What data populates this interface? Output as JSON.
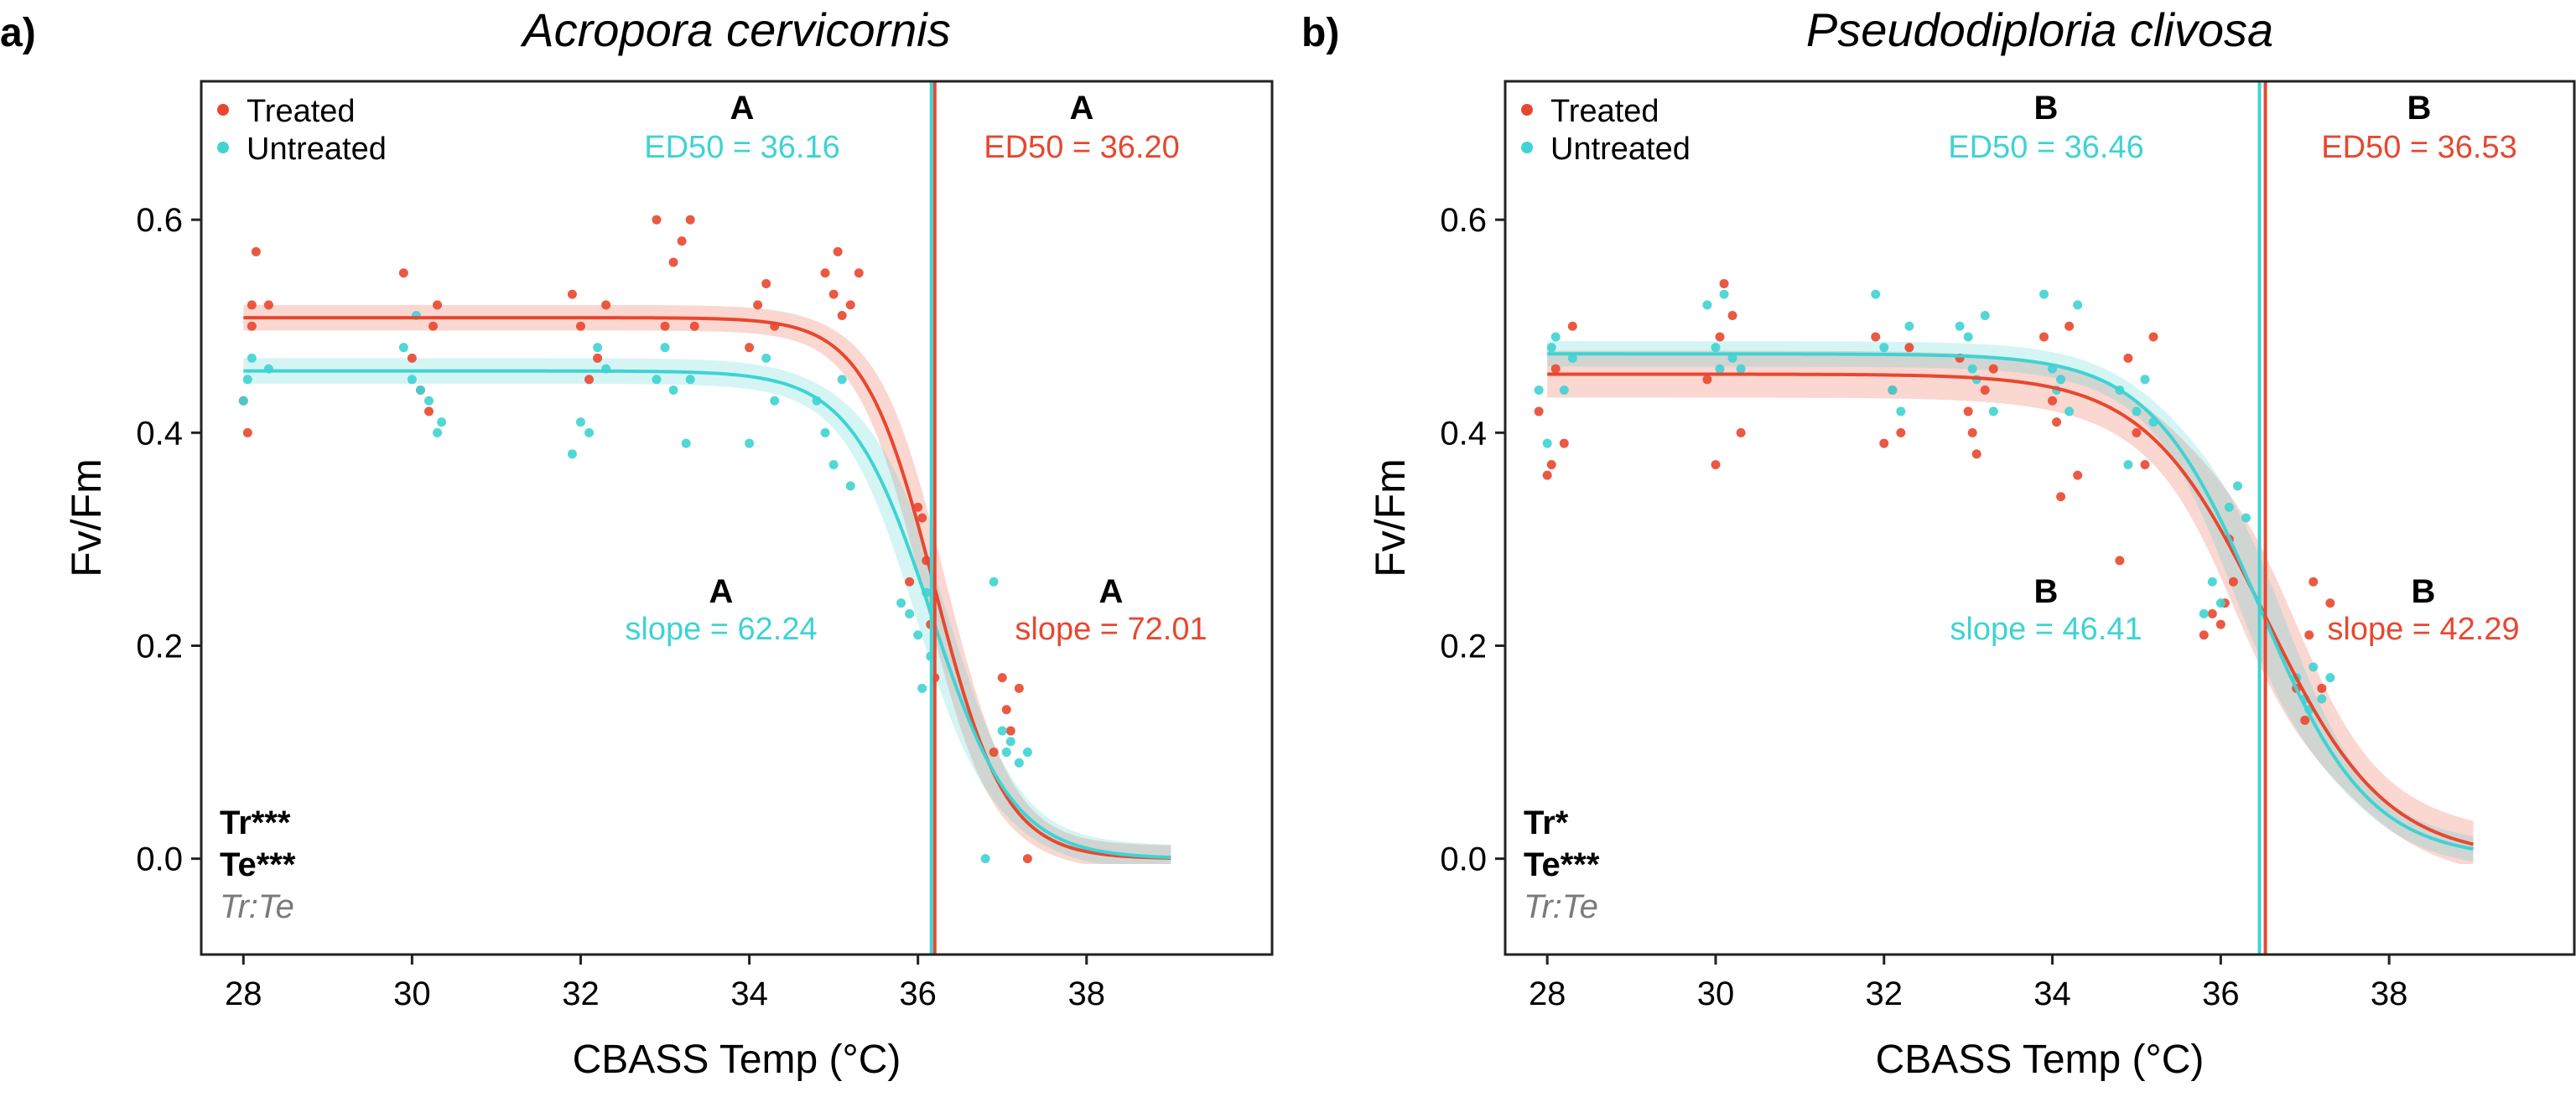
{
  "colors": {
    "treated": "#E8472F",
    "untreated": "#3FD3D3"
  },
  "chart_data": [
    {
      "type": "scatter",
      "panel_label": "a)",
      "title": "Acropora cervicornis",
      "xlabel": "CBASS Temp (°C)",
      "ylabel": "Fv/Fm",
      "xlim": [
        27.5,
        40.2
      ],
      "ylim": [
        -0.09,
        0.73
      ],
      "xticks": [
        28,
        30,
        32,
        34,
        36,
        38
      ],
      "yticks": [
        0.0,
        0.2,
        0.4,
        0.6
      ],
      "legend": {
        "placement": "top-left",
        "entries": [
          "Treated",
          "Untreated"
        ]
      },
      "significance": [
        "Tr***",
        "Te***"
      ],
      "significance_ns": "Tr:Te",
      "annotations": {
        "untreated_ed50": {
          "letter": "A",
          "text": "ED50 = 36.16"
        },
        "treated_ed50": {
          "letter": "A",
          "text": "ED50 = 36.20"
        },
        "untreated_slope": {
          "letter": "A",
          "text": "slope = 62.24"
        },
        "treated_slope": {
          "letter": "A",
          "text": "slope = 72.01"
        }
      },
      "series": [
        {
          "name": "Treated",
          "color": "#E8472F",
          "ed50": 36.2,
          "curve": {
            "top": 0.508,
            "slope": 72.01,
            "xmax": 39.0
          },
          "points": [
            [
              28.0,
              0.43
            ],
            [
              28.05,
              0.4
            ],
            [
              28.1,
              0.5
            ],
            [
              28.1,
              0.52
            ],
            [
              28.15,
              0.57
            ],
            [
              28.3,
              0.52
            ],
            [
              29.9,
              0.55
            ],
            [
              30.0,
              0.47
            ],
            [
              30.1,
              0.44
            ],
            [
              30.2,
              0.42
            ],
            [
              30.25,
              0.5
            ],
            [
              30.3,
              0.52
            ],
            [
              31.9,
              0.53
            ],
            [
              32.0,
              0.5
            ],
            [
              32.1,
              0.45
            ],
            [
              32.2,
              0.47
            ],
            [
              32.3,
              0.52
            ],
            [
              32.9,
              0.6
            ],
            [
              33.0,
              0.5
            ],
            [
              33.1,
              0.56
            ],
            [
              33.2,
              0.58
            ],
            [
              33.3,
              0.6
            ],
            [
              33.35,
              0.5
            ],
            [
              34.0,
              0.48
            ],
            [
              34.1,
              0.52
            ],
            [
              34.2,
              0.54
            ],
            [
              34.3,
              0.5
            ],
            [
              34.9,
              0.55
            ],
            [
              35.0,
              0.53
            ],
            [
              35.05,
              0.57
            ],
            [
              35.1,
              0.51
            ],
            [
              35.2,
              0.52
            ],
            [
              35.3,
              0.55
            ],
            [
              35.9,
              0.26
            ],
            [
              36.0,
              0.33
            ],
            [
              36.05,
              0.32
            ],
            [
              36.1,
              0.28
            ],
            [
              36.15,
              0.22
            ],
            [
              36.2,
              0.17
            ],
            [
              36.9,
              0.1
            ],
            [
              37.0,
              0.17
            ],
            [
              37.05,
              0.14
            ],
            [
              37.1,
              0.12
            ],
            [
              37.2,
              0.16
            ],
            [
              37.3,
              0.0
            ]
          ]
        },
        {
          "name": "Untreated",
          "color": "#3FD3D3",
          "ed50": 36.16,
          "curve": {
            "top": 0.458,
            "slope": 62.24,
            "xmax": 39.0
          },
          "points": [
            [
              28.0,
              0.43
            ],
            [
              28.05,
              0.45
            ],
            [
              28.1,
              0.47
            ],
            [
              28.3,
              0.46
            ],
            [
              29.9,
              0.48
            ],
            [
              30.0,
              0.45
            ],
            [
              30.05,
              0.51
            ],
            [
              30.1,
              0.44
            ],
            [
              30.2,
              0.43
            ],
            [
              30.3,
              0.4
            ],
            [
              30.35,
              0.41
            ],
            [
              31.9,
              0.38
            ],
            [
              32.0,
              0.41
            ],
            [
              32.1,
              0.4
            ],
            [
              32.2,
              0.48
            ],
            [
              32.3,
              0.46
            ],
            [
              32.9,
              0.45
            ],
            [
              33.0,
              0.48
            ],
            [
              33.1,
              0.44
            ],
            [
              33.25,
              0.39
            ],
            [
              33.3,
              0.45
            ],
            [
              34.0,
              0.39
            ],
            [
              34.2,
              0.47
            ],
            [
              34.3,
              0.43
            ],
            [
              34.8,
              0.43
            ],
            [
              34.9,
              0.4
            ],
            [
              35.0,
              0.37
            ],
            [
              35.1,
              0.45
            ],
            [
              35.2,
              0.35
            ],
            [
              35.8,
              0.24
            ],
            [
              35.9,
              0.23
            ],
            [
              36.0,
              0.21
            ],
            [
              36.05,
              0.16
            ],
            [
              36.1,
              0.25
            ],
            [
              36.15,
              0.19
            ],
            [
              36.8,
              0.0
            ],
            [
              36.9,
              0.26
            ],
            [
              37.0,
              0.12
            ],
            [
              37.05,
              0.1
            ],
            [
              37.1,
              0.11
            ],
            [
              37.2,
              0.09
            ],
            [
              37.3,
              0.1
            ]
          ]
        }
      ]
    },
    {
      "type": "scatter",
      "panel_label": "b)",
      "title": "Pseudodiploria clivosa",
      "xlabel": "CBASS Temp (°C)",
      "ylabel": "Fv/Fm",
      "xlim": [
        27.5,
        40.2
      ],
      "ylim": [
        -0.09,
        0.73
      ],
      "xticks": [
        28,
        30,
        32,
        34,
        36,
        38
      ],
      "yticks": [
        0.0,
        0.2,
        0.4,
        0.6
      ],
      "legend": {
        "placement": "top-left",
        "entries": [
          "Treated",
          "Untreated"
        ]
      },
      "significance": [
        "Tr*",
        "Te***"
      ],
      "significance_ns": "Tr:Te",
      "annotations": {
        "untreated_ed50": {
          "letter": "B",
          "text": "ED50 = 36.46"
        },
        "treated_ed50": {
          "letter": "B",
          "text": "ED50 = 36.53"
        },
        "untreated_slope": {
          "letter": "B",
          "text": "slope = 46.41"
        },
        "treated_slope": {
          "letter": "B",
          "text": "slope = 42.29"
        }
      },
      "series": [
        {
          "name": "Treated",
          "color": "#E8472F",
          "ed50": 36.53,
          "curve": {
            "top": 0.455,
            "slope": 42.29,
            "xmax": 39.0
          },
          "points": [
            [
              27.9,
              0.42
            ],
            [
              28.0,
              0.36
            ],
            [
              28.05,
              0.37
            ],
            [
              28.1,
              0.46
            ],
            [
              28.2,
              0.39
            ],
            [
              28.3,
              0.5
            ],
            [
              29.9,
              0.45
            ],
            [
              30.0,
              0.37
            ],
            [
              30.05,
              0.49
            ],
            [
              30.1,
              0.54
            ],
            [
              30.2,
              0.51
            ],
            [
              30.3,
              0.4
            ],
            [
              31.9,
              0.49
            ],
            [
              32.0,
              0.39
            ],
            [
              32.1,
              0.44
            ],
            [
              32.2,
              0.4
            ],
            [
              32.3,
              0.48
            ],
            [
              32.9,
              0.47
            ],
            [
              33.0,
              0.42
            ],
            [
              33.05,
              0.4
            ],
            [
              33.1,
              0.38
            ],
            [
              33.2,
              0.44
            ],
            [
              33.3,
              0.46
            ],
            [
              33.9,
              0.49
            ],
            [
              34.0,
              0.43
            ],
            [
              34.05,
              0.41
            ],
            [
              34.1,
              0.34
            ],
            [
              34.2,
              0.5
            ],
            [
              34.3,
              0.36
            ],
            [
              34.8,
              0.28
            ],
            [
              34.9,
              0.47
            ],
            [
              35.0,
              0.4
            ],
            [
              35.1,
              0.37
            ],
            [
              35.2,
              0.49
            ],
            [
              35.8,
              0.21
            ],
            [
              35.9,
              0.23
            ],
            [
              36.0,
              0.22
            ],
            [
              36.05,
              0.24
            ],
            [
              36.1,
              0.3
            ],
            [
              36.15,
              0.26
            ],
            [
              36.9,
              0.16
            ],
            [
              37.0,
              0.13
            ],
            [
              37.05,
              0.21
            ],
            [
              37.1,
              0.26
            ],
            [
              37.2,
              0.16
            ],
            [
              37.3,
              0.24
            ]
          ]
        },
        {
          "name": "Untreated",
          "color": "#3FD3D3",
          "ed50": 36.46,
          "curve": {
            "top": 0.474,
            "slope": 46.41,
            "xmax": 39.0
          },
          "points": [
            [
              27.9,
              0.44
            ],
            [
              28.0,
              0.39
            ],
            [
              28.05,
              0.48
            ],
            [
              28.1,
              0.49
            ],
            [
              28.2,
              0.44
            ],
            [
              28.3,
              0.47
            ],
            [
              29.9,
              0.52
            ],
            [
              30.0,
              0.48
            ],
            [
              30.05,
              0.46
            ],
            [
              30.1,
              0.53
            ],
            [
              30.2,
              0.47
            ],
            [
              30.3,
              0.46
            ],
            [
              31.9,
              0.53
            ],
            [
              32.0,
              0.48
            ],
            [
              32.1,
              0.44
            ],
            [
              32.2,
              0.42
            ],
            [
              32.3,
              0.5
            ],
            [
              32.9,
              0.5
            ],
            [
              33.0,
              0.49
            ],
            [
              33.05,
              0.46
            ],
            [
              33.1,
              0.45
            ],
            [
              33.2,
              0.51
            ],
            [
              33.3,
              0.42
            ],
            [
              33.9,
              0.53
            ],
            [
              34.0,
              0.46
            ],
            [
              34.05,
              0.44
            ],
            [
              34.1,
              0.45
            ],
            [
              34.2,
              0.42
            ],
            [
              34.3,
              0.52
            ],
            [
              34.8,
              0.44
            ],
            [
              34.9,
              0.37
            ],
            [
              35.0,
              0.42
            ],
            [
              35.1,
              0.45
            ],
            [
              35.2,
              0.41
            ],
            [
              35.8,
              0.23
            ],
            [
              35.9,
              0.26
            ],
            [
              36.0,
              0.24
            ],
            [
              36.1,
              0.33
            ],
            [
              36.2,
              0.35
            ],
            [
              36.3,
              0.32
            ],
            [
              36.9,
              0.17
            ],
            [
              37.0,
              0.15
            ],
            [
              37.05,
              0.14
            ],
            [
              37.1,
              0.18
            ],
            [
              37.2,
              0.15
            ],
            [
              37.3,
              0.17
            ]
          ]
        }
      ]
    }
  ]
}
